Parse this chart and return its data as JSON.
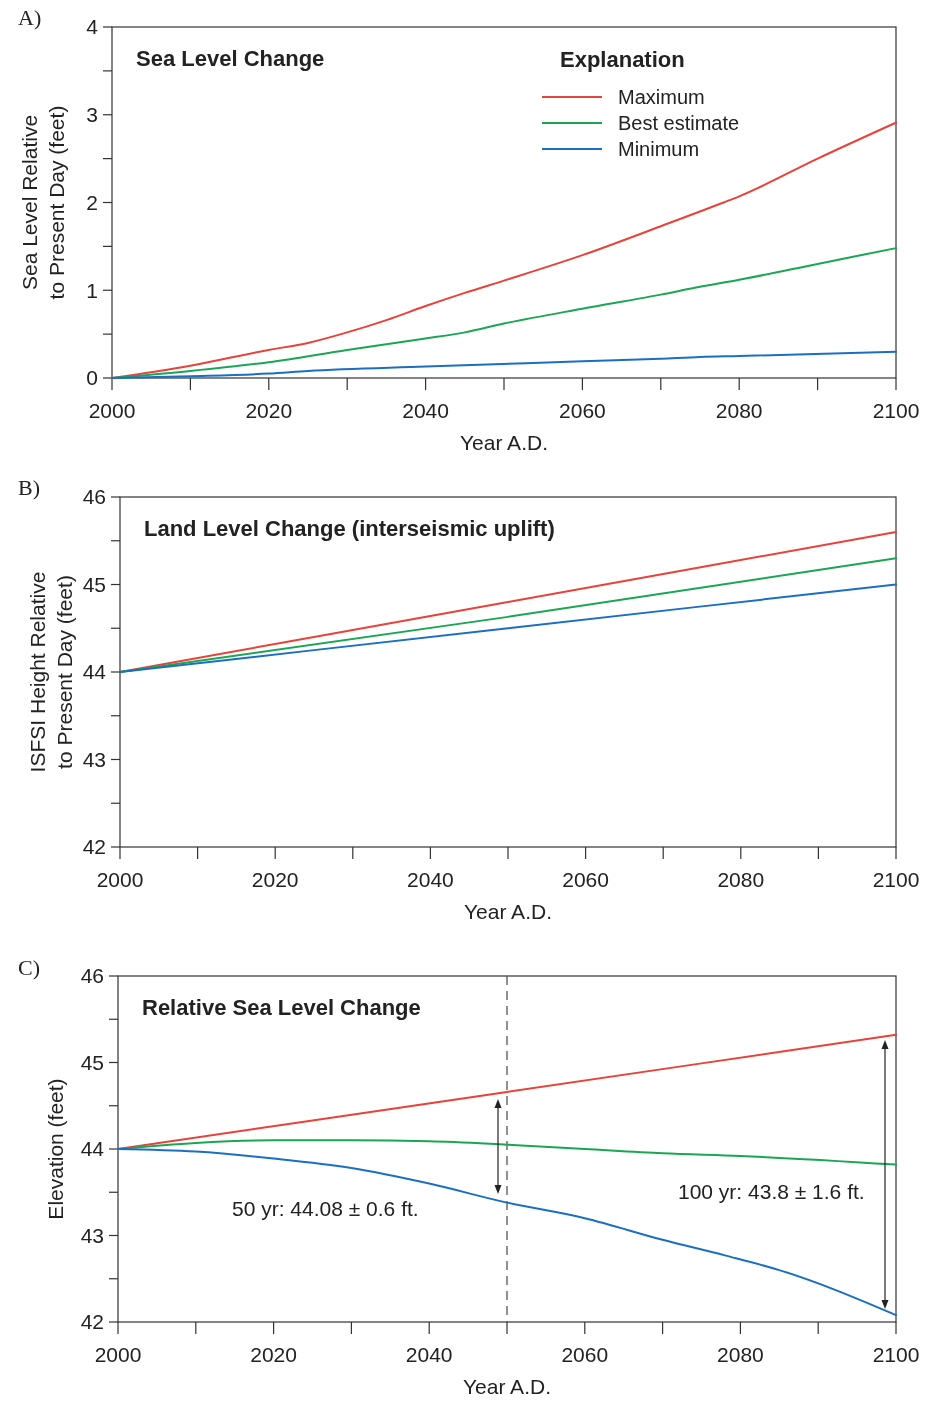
{
  "chart_data": [
    {
      "type": "line",
      "title": "Sea Level Change",
      "xlabel": "Year A.D.",
      "ylabel": "Sea Level Relative\nto Present Day (feet)",
      "legend_title": "Explanation",
      "legend": "top right",
      "grid": false,
      "line_style": "solid",
      "annotations": [
        "A)"
      ],
      "xlim": [
        2000,
        2100
      ],
      "xticks": [
        2000,
        {
          "value": 2010,
          "label": null
        },
        2020,
        {
          "value": 2030,
          "label": null
        },
        2040,
        {
          "value": 2050,
          "label": null
        },
        2060,
        {
          "value": 2070,
          "label": null
        },
        2080,
        {
          "value": 2090,
          "label": null
        },
        2100
      ],
      "ylim": [
        0,
        4
      ],
      "yticks": [
        0,
        {
          "value": 0.5,
          "label": null
        },
        1,
        {
          "value": 1.5,
          "label": null
        },
        2,
        {
          "value": 2.5,
          "label": null
        },
        3,
        {
          "value": 3.5,
          "label": null
        },
        4
      ],
      "series": [
        {
          "name": "Maximum",
          "color": "#e8423a",
          "x": [
            2000,
            2010,
            2020,
            2025,
            2030,
            2035,
            2040,
            2045,
            2050,
            2060,
            2070,
            2078,
            2080,
            2090,
            2100
          ],
          "values": [
            0,
            0.14,
            0.32,
            0.4,
            0.52,
            0.66,
            0.82,
            0.97,
            1.11,
            1.4,
            1.73,
            2.0,
            2.07,
            2.5,
            2.91
          ]
        },
        {
          "name": "Best estimate",
          "color": "#1aa654",
          "x": [
            2000,
            2010,
            2020,
            2030,
            2040,
            2045,
            2050,
            2060,
            2070,
            2075,
            2080,
            2090,
            2100
          ],
          "values": [
            0,
            0.08,
            0.18,
            0.32,
            0.45,
            0.52,
            0.62,
            0.79,
            0.95,
            1.04,
            1.12,
            1.3,
            1.48
          ]
        },
        {
          "name": "Minimum",
          "color": "#1a6fc0",
          "x": [
            2000,
            2010,
            2020,
            2025,
            2040,
            2060,
            2070,
            2075,
            2080,
            2100
          ],
          "values": [
            0,
            0.02,
            0.05,
            0.08,
            0.13,
            0.19,
            0.22,
            0.24,
            0.25,
            0.3
          ]
        }
      ]
    },
    {
      "type": "line",
      "title": "Land Level Change (interseismic uplift)",
      "xlabel": "Year A.D.",
      "ylabel": "ISFSI Height Relative\nto Present Day (feet)",
      "grid": false,
      "line_style": "solid",
      "annotations": [
        "B)"
      ],
      "xlim": [
        2000,
        2100
      ],
      "xticks": [
        2000,
        {
          "value": 2010,
          "label": null
        },
        2020,
        {
          "value": 2030,
          "label": null
        },
        2040,
        {
          "value": 2050,
          "label": null
        },
        2060,
        {
          "value": 2070,
          "label": null
        },
        2080,
        {
          "value": 2090,
          "label": null
        },
        2100
      ],
      "ylim": [
        42,
        46
      ],
      "yticks": [
        42,
        {
          "value": 42.5,
          "label": null
        },
        43,
        {
          "value": 43.5,
          "label": null
        },
        44,
        {
          "value": 44.5,
          "label": null
        },
        45,
        {
          "value": 45.5,
          "label": null
        },
        46
      ],
      "series": [
        {
          "color": "#e8423a",
          "x": [
            2000,
            2050,
            2100
          ],
          "values": [
            44,
            44.8,
            45.6
          ]
        },
        {
          "color": "#1aa654",
          "x": [
            2000,
            2050,
            2100
          ],
          "values": [
            44,
            44.63,
            45.3
          ]
        },
        {
          "color": "#1a6fc0",
          "x": [
            2000,
            2050,
            2100
          ],
          "values": [
            44,
            44.5,
            45.0
          ]
        }
      ]
    },
    {
      "type": "line",
      "title": "Relative Sea Level Change",
      "xlabel": "Year A.D.",
      "ylabel": "Elevation (feet)",
      "grid": false,
      "line_style": "solid",
      "annotations": [
        "C)",
        "50 yr: 44.08 ± 0.6 ft.",
        "100 yr: 43.8 ± 1.6 ft."
      ],
      "ref_lines": [
        {
          "axis": "x",
          "value": 2050,
          "color": "#555555",
          "line_style": "dashed"
        }
      ],
      "xlim": [
        2000,
        2100
      ],
      "xticks": [
        2000,
        {
          "value": 2010,
          "label": null
        },
        2020,
        {
          "value": 2030,
          "label": null
        },
        2040,
        {
          "value": 2050,
          "label": null
        },
        2060,
        {
          "value": 2070,
          "label": null
        },
        2080,
        {
          "value": 2090,
          "label": null
        },
        2100
      ],
      "ylim": [
        42,
        46
      ],
      "yticks": [
        42,
        {
          "value": 42.5,
          "label": null
        },
        43,
        {
          "value": 43.5,
          "label": null
        },
        44,
        {
          "value": 44.5,
          "label": null
        },
        45,
        {
          "value": 45.5,
          "label": null
        },
        46
      ],
      "series": [
        {
          "color": "#e8423a",
          "x": [
            2000,
            2050,
            2100
          ],
          "values": [
            44,
            44.66,
            45.32
          ]
        },
        {
          "color": "#1aa654",
          "x": [
            2000,
            2010,
            2020,
            2030,
            2040,
            2050,
            2060,
            2070,
            2080,
            2100
          ],
          "values": [
            44,
            44.07,
            44.1,
            44.1,
            44.09,
            44.05,
            44.0,
            43.95,
            43.92,
            43.82
          ]
        },
        {
          "color": "#1a6fc0",
          "x": [
            2000,
            2010,
            2020,
            2030,
            2040,
            2050,
            2060,
            2070,
            2078,
            2085,
            2100
          ],
          "values": [
            44,
            43.97,
            43.89,
            43.78,
            43.6,
            43.38,
            43.2,
            42.95,
            42.77,
            42.6,
            42.08
          ]
        }
      ]
    }
  ]
}
